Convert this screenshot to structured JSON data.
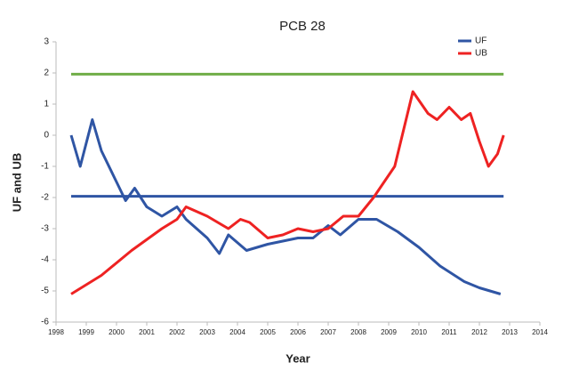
{
  "chart_data": {
    "type": "line",
    "title": "PCB 28",
    "xlabel": "Year",
    "ylabel": "UF and UB",
    "xlim": [
      1998,
      2014
    ],
    "xticks": [
      1998,
      1999,
      2000,
      2001,
      2002,
      2003,
      2004,
      2005,
      2006,
      2007,
      2008,
      2009,
      2010,
      2011,
      2012,
      2013,
      2014
    ],
    "ylim": [
      -6,
      3
    ],
    "yticks": [
      -6,
      -5,
      -4,
      -3,
      -2,
      -1,
      0,
      1,
      2,
      3
    ],
    "legend": "upper right",
    "hlines": [
      {
        "value": 1.96,
        "color": "#70ad47"
      },
      {
        "value": -1.96,
        "color": "#2f55a4"
      }
    ],
    "series": [
      {
        "name": "UF",
        "color": "#2f55a4",
        "x": [
          1998.5,
          1998.8,
          1999.2,
          1999.5,
          2000,
          2000.3,
          2000.6,
          2001,
          2001.5,
          2002,
          2002.3,
          2003,
          2003.4,
          2003.7,
          2004.3,
          2005,
          2005.5,
          2006,
          2006.5,
          2007,
          2007.4,
          2008,
          2008.6,
          2009.3,
          2010,
          2010.7,
          2011.5,
          2012,
          2012.7
        ],
        "values": [
          0,
          -1,
          0.5,
          -0.5,
          -1.5,
          -2.1,
          -1.7,
          -2.3,
          -2.6,
          -2.3,
          -2.7,
          -3.3,
          -3.8,
          -3.2,
          -3.7,
          -3.5,
          -3.4,
          -3.3,
          -3.3,
          -2.9,
          -3.2,
          -2.7,
          -2.7,
          -3.1,
          -3.6,
          -4.2,
          -4.7,
          -4.9,
          -5.1
        ]
      },
      {
        "name": "UB",
        "color": "#ee2222",
        "x": [
          1998.5,
          1999.5,
          2000.5,
          2001.5,
          2002,
          2002.3,
          2003,
          2003.7,
          2004.1,
          2004.4,
          2005,
          2005.5,
          2006,
          2006.5,
          2007,
          2007.5,
          2008,
          2008.5,
          2009.2,
          2009.8,
          2010.3,
          2010.6,
          2011,
          2011.4,
          2011.7,
          2012,
          2012.3,
          2012.6,
          2012.8
        ],
        "values": [
          -5.1,
          -4.5,
          -3.7,
          -3,
          -2.7,
          -2.3,
          -2.6,
          -3,
          -2.7,
          -2.8,
          -3.3,
          -3.2,
          -3,
          -3.1,
          -3,
          -2.6,
          -2.6,
          -2,
          -1,
          1.4,
          0.7,
          0.5,
          0.9,
          0.5,
          0.7,
          -0.2,
          -1,
          -0.6,
          0
        ]
      }
    ]
  }
}
